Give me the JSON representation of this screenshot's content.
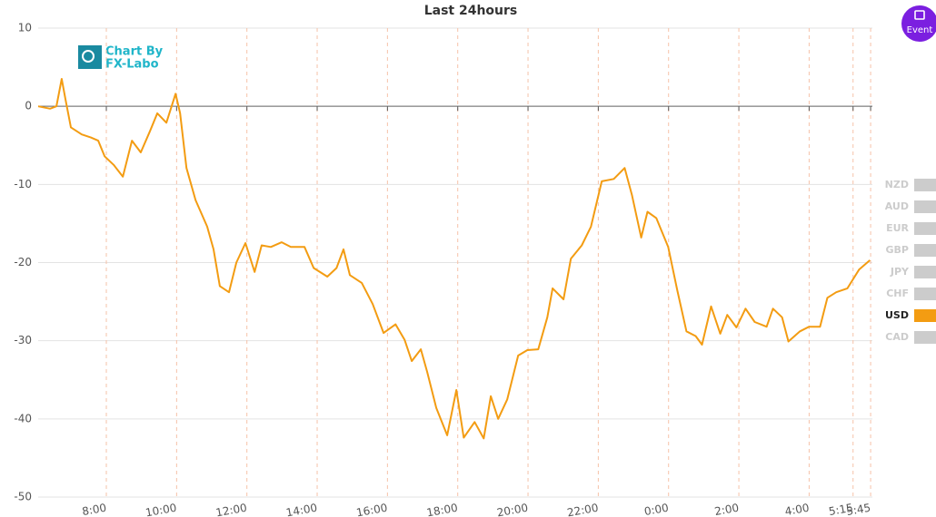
{
  "chart_data": {
    "type": "line",
    "title": "Last 24hours",
    "watermark": [
      "Chart By",
      "FX-Labo"
    ],
    "event_button": "Event",
    "x": [
      6.06,
      6.4,
      6.58,
      6.73,
      6.84,
      6.99,
      7.3,
      7.56,
      7.77,
      7.95,
      8.21,
      8.47,
      8.73,
      8.98,
      9.24,
      9.45,
      9.71,
      9.97,
      10.1,
      10.28,
      10.54,
      10.87,
      11.05,
      11.23,
      11.49,
      11.7,
      11.96,
      12.22,
      12.42,
      12.68,
      12.99,
      13.25,
      13.64,
      13.9,
      14.29,
      14.55,
      14.75,
      14.93,
      15.27,
      15.58,
      15.89,
      16.23,
      16.49,
      16.69,
      16.95,
      17.13,
      17.39,
      17.7,
      17.96,
      18.17,
      18.48,
      18.74,
      18.94,
      19.15,
      19.41,
      19.72,
      19.98,
      20.29,
      20.55,
      20.7,
      21.01,
      21.22,
      21.53,
      21.79,
      22.1,
      22.44,
      22.75,
      22.96,
      23.22,
      23.4,
      23.65,
      23.99,
      24.25,
      24.51,
      24.77,
      24.95,
      25.21,
      25.47,
      25.67,
      25.93,
      26.19,
      26.45,
      26.79,
      26.97,
      27.23,
      27.41,
      27.74,
      28.0,
      28.31,
      28.52,
      28.77,
      29.09,
      29.42,
      29.73
    ],
    "series": [
      {
        "name": "USD",
        "color": "#f39c12",
        "values": [
          0,
          -0.3,
          0,
          3.5,
          0.8,
          -2.7,
          -3.6,
          -4,
          -4.4,
          -6.4,
          -7.5,
          -9,
          -4.4,
          -5.9,
          -3.2,
          -0.9,
          -2.1,
          1.6,
          -0.9,
          -7.9,
          -12,
          -15.4,
          -18.3,
          -23,
          -23.8,
          -20,
          -17.5,
          -21.2,
          -17.8,
          -18,
          -17.4,
          -18,
          -18,
          -20.7,
          -21.8,
          -20.7,
          -18.3,
          -21.6,
          -22.6,
          -25.3,
          -29,
          -27.9,
          -29.9,
          -32.6,
          -31.1,
          -34,
          -38.6,
          -42.1,
          -36.3,
          -42.4,
          -40.4,
          -42.5,
          -37.1,
          -40,
          -37.5,
          -31.9,
          -31.2,
          -31.1,
          -27,
          -23.3,
          -24.7,
          -19.5,
          -17.8,
          -15.4,
          -9.6,
          -9.3,
          -7.9,
          -11.4,
          -16.8,
          -13.5,
          -14.3,
          -18,
          -23.6,
          -28.8,
          -29.4,
          -30.5,
          -25.6,
          -29.1,
          -26.7,
          -28.3,
          -25.9,
          -27.6,
          -28.2,
          -25.9,
          -27,
          -30.1,
          -28.8,
          -28.2,
          -28.2,
          -24.5,
          -23.8,
          -23.3,
          -20.9,
          -19.7
        ]
      }
    ],
    "xlim": [
      6.06,
      29.8
    ],
    "xticks": [
      {
        "value": 8,
        "label": "8:00"
      },
      {
        "value": 10,
        "label": "10:00"
      },
      {
        "value": 12,
        "label": "12:00"
      },
      {
        "value": 14,
        "label": "14:00"
      },
      {
        "value": 16,
        "label": "16:00"
      },
      {
        "value": 18,
        "label": "18:00"
      },
      {
        "value": 20,
        "label": "20:00"
      },
      {
        "value": 22,
        "label": "22:00"
      },
      {
        "value": 24,
        "label": "0:00"
      },
      {
        "value": 26,
        "label": "2:00"
      },
      {
        "value": 28,
        "label": "4:00"
      },
      {
        "value": 29.25,
        "label": "5:15"
      },
      {
        "value": 29.75,
        "label": "5:45"
      }
    ],
    "ylim": [
      -50,
      10
    ],
    "yticks": [
      -50,
      -40,
      -30,
      -20,
      -10,
      0,
      10
    ],
    "grid": true,
    "legend": [
      {
        "name": "NZD",
        "color": "#cccccc"
      },
      {
        "name": "AUD",
        "color": "#cccccc"
      },
      {
        "name": "EUR",
        "color": "#cccccc"
      },
      {
        "name": "GBP",
        "color": "#cccccc"
      },
      {
        "name": "JPY",
        "color": "#cccccc"
      },
      {
        "name": "CHF",
        "color": "#cccccc"
      },
      {
        "name": "USD",
        "color": "#f39c12"
      },
      {
        "name": "CAD",
        "color": "#cccccc"
      }
    ]
  }
}
